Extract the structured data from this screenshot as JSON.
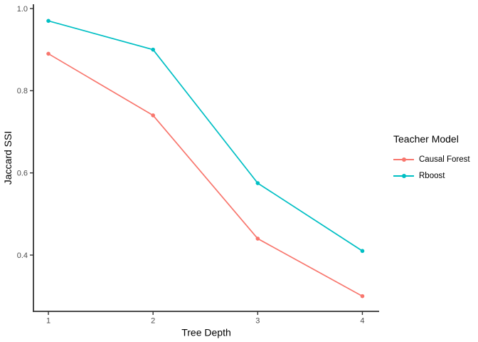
{
  "chart_data": {
    "type": "line",
    "title": "",
    "xlabel": "Tree Depth",
    "ylabel": "Jaccard SSI",
    "x": [
      1,
      2,
      3,
      4
    ],
    "x_tick_labels": [
      "1",
      "2",
      "3",
      "4"
    ],
    "y_ticks": [
      0.4,
      0.6,
      0.8,
      1.0
    ],
    "y_tick_labels": [
      "0.4",
      "0.6",
      "0.8",
      "1.0"
    ],
    "xlim": [
      0.857,
      4.16
    ],
    "ylim": [
      0.263,
      1.0104
    ],
    "grid": false,
    "legend_position": "right",
    "legend_title": "Teacher Model",
    "series": [
      {
        "name": "Causal Forest",
        "color": "#F8766D",
        "values": [
          0.89,
          0.74,
          0.44,
          0.3
        ]
      },
      {
        "name": "Rboost",
        "color": "#00BFC4",
        "values": [
          0.97,
          0.9,
          0.575,
          0.41
        ]
      }
    ]
  },
  "legend": {
    "title": "Teacher Model",
    "items": [
      {
        "label": "Causal Forest",
        "color": "#F8766D"
      },
      {
        "label": "Rboost",
        "color": "#00BFC4"
      }
    ]
  },
  "styles": {
    "axis_color": "#333333",
    "tick_label_color": "#4D4D4D",
    "title_color": "#000000",
    "background": "#FFFFFF"
  }
}
